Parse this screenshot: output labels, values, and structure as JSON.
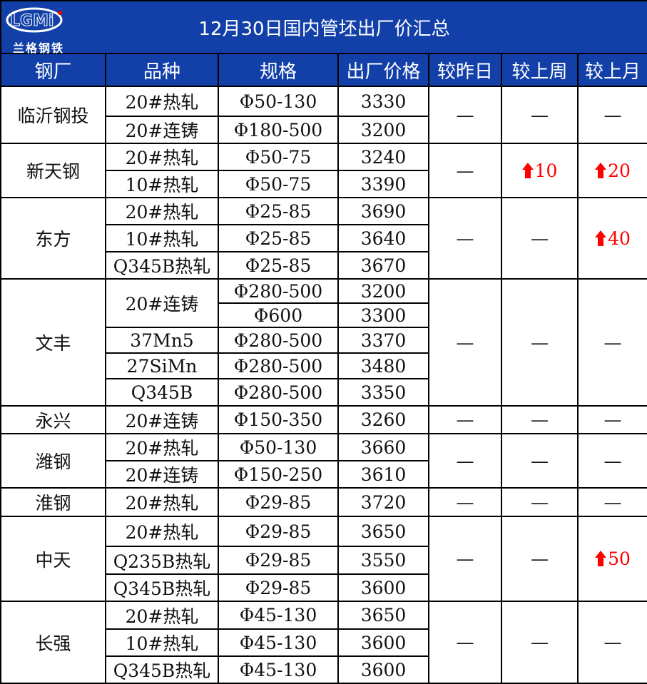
{
  "title": "12月30日国内管坯出厂价汇总",
  "logo": {
    "letters": "LGMi",
    "name": "兰格钢铁"
  },
  "headers": [
    "钢厂",
    "品种",
    "规格",
    "出厂价格",
    "较昨日",
    "较上周",
    "较上月"
  ],
  "colors": {
    "header_bg": "#1240a8",
    "up": "#ff0000"
  },
  "no_change": "—",
  "groups": [
    {
      "mill": "临沂钢投",
      "day": "—",
      "week": "—",
      "month": "—",
      "items": [
        {
          "variety": "20#热轧",
          "specs": [
            {
              "spec": "Φ50-130",
              "price": "3330"
            }
          ]
        },
        {
          "variety": "20#连铸",
          "specs": [
            {
              "spec": "Φ180-500",
              "price": "3200"
            }
          ]
        }
      ]
    },
    {
      "mill": "新天钢",
      "day": "—",
      "week": "10",
      "week_up": true,
      "month": "20",
      "month_up": true,
      "items": [
        {
          "variety": "20#热轧",
          "specs": [
            {
              "spec": "Φ50-75",
              "price": "3240"
            }
          ]
        },
        {
          "variety": "10#热轧",
          "specs": [
            {
              "spec": "Φ50-75",
              "price": "3390"
            }
          ]
        }
      ]
    },
    {
      "mill": "东方",
      "day": "—",
      "week": "—",
      "month": "40",
      "month_up": true,
      "items": [
        {
          "variety": "20#热轧",
          "specs": [
            {
              "spec": "Φ25-85",
              "price": "3690"
            }
          ]
        },
        {
          "variety": "10#热轧",
          "specs": [
            {
              "spec": "Φ25-85",
              "price": "3640"
            }
          ]
        },
        {
          "variety": "Q345B热轧",
          "specs": [
            {
              "spec": "Φ25-85",
              "price": "3670"
            }
          ]
        }
      ]
    },
    {
      "mill": "文丰",
      "day": "—",
      "week": "—",
      "month": "—",
      "items": [
        {
          "variety": "20#连铸",
          "specs": [
            {
              "spec": "Φ280-500",
              "price": "3200"
            },
            {
              "spec": "Φ600",
              "price": "3300"
            }
          ]
        },
        {
          "variety": "37Mn5",
          "specs": [
            {
              "spec": "Φ280-500",
              "price": "3370"
            }
          ]
        },
        {
          "variety": "27SiMn",
          "specs": [
            {
              "spec": "Φ280-500",
              "price": "3480"
            }
          ]
        },
        {
          "variety": "Q345B",
          "specs": [
            {
              "spec": "Φ280-500",
              "price": "3350"
            }
          ]
        }
      ]
    },
    {
      "mill": "永兴",
      "day": "—",
      "week": "—",
      "month": "—",
      "items": [
        {
          "variety": "20#连铸",
          "specs": [
            {
              "spec": "Φ150-350",
              "price": "3260"
            }
          ]
        }
      ]
    },
    {
      "mill": "潍钢",
      "day": "—",
      "week": "—",
      "month": "—",
      "items": [
        {
          "variety": "20#热轧",
          "specs": [
            {
              "spec": "Φ50-130",
              "price": "3660"
            }
          ]
        },
        {
          "variety": "20#连铸",
          "specs": [
            {
              "spec": "Φ150-250",
              "price": "3610"
            }
          ]
        }
      ]
    },
    {
      "mill": "淮钢",
      "day": "—",
      "week": "—",
      "month": "—",
      "items": [
        {
          "variety": "20#热轧",
          "specs": [
            {
              "spec": "Φ29-85",
              "price": "3720"
            }
          ]
        }
      ]
    },
    {
      "mill": "中天",
      "day": "—",
      "week": "—",
      "month": "50",
      "month_up": true,
      "items": [
        {
          "variety": "20#热轧",
          "specs": [
            {
              "spec": "Φ29-85",
              "price": "3650"
            }
          ]
        },
        {
          "variety": "Q235B热轧",
          "specs": [
            {
              "spec": "Φ29-85",
              "price": "3550"
            }
          ]
        },
        {
          "variety": "Q345B热轧",
          "specs": [
            {
              "spec": "Φ29-85",
              "price": "3600"
            }
          ]
        }
      ]
    },
    {
      "mill": "长强",
      "day": "—",
      "week": "—",
      "month": "—",
      "items": [
        {
          "variety": "20#热轧",
          "specs": [
            {
              "spec": "Φ45-130",
              "price": "3650"
            }
          ]
        },
        {
          "variety": "10#热轧",
          "specs": [
            {
              "spec": "Φ45-130",
              "price": "3600"
            }
          ]
        },
        {
          "variety": "Q345B热轧",
          "specs": [
            {
              "spec": "Φ45-130",
              "price": "3600"
            }
          ]
        }
      ]
    }
  ]
}
